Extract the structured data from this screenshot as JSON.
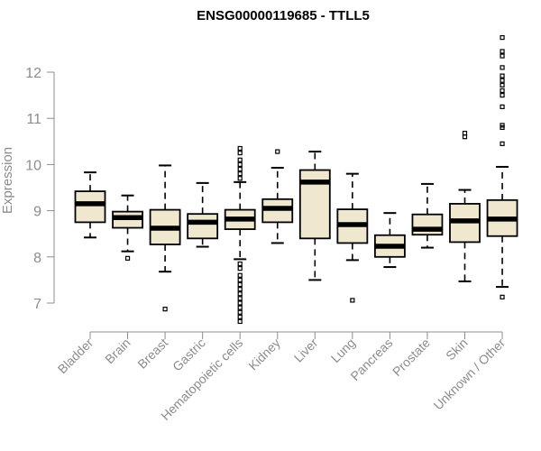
{
  "chart_data": {
    "type": "boxplot",
    "title": "ENSG00000119685 - TTLL5",
    "xlabel": "",
    "ylabel": "Expression",
    "ylim": [
      6.5,
      12.8
    ],
    "yticks": [
      7,
      8,
      9,
      10,
      11,
      12
    ],
    "colors": {
      "box_fill": "#efe8cf",
      "stroke": "#000000",
      "axis": "#8c8c8c"
    },
    "categories": [
      "Bladder",
      "Brain",
      "Breast",
      "Gastric",
      "Hematopoietic cells",
      "Kidney",
      "Liver",
      "Lung",
      "Pancreas",
      "Prostate",
      "Skin",
      "Unknown / Other"
    ],
    "boxes": [
      {
        "category": "Bladder",
        "q1": 8.75,
        "median": 9.15,
        "q3": 9.42,
        "whisker_low": 8.42,
        "whisker_high": 9.83,
        "outliers": []
      },
      {
        "category": "Brain",
        "q1": 8.63,
        "median": 8.85,
        "q3": 8.98,
        "whisker_low": 8.12,
        "whisker_high": 9.33,
        "outliers": [
          7.97
        ]
      },
      {
        "category": "Breast",
        "q1": 8.27,
        "median": 8.62,
        "q3": 9.02,
        "whisker_low": 7.68,
        "whisker_high": 9.98,
        "outliers": [
          6.87
        ]
      },
      {
        "category": "Gastric",
        "q1": 8.4,
        "median": 8.75,
        "q3": 8.93,
        "whisker_low": 8.22,
        "whisker_high": 9.6,
        "outliers": []
      },
      {
        "category": "Hematopoietic cells",
        "q1": 8.6,
        "median": 8.82,
        "q3": 9.02,
        "whisker_low": 7.95,
        "whisker_high": 9.62,
        "outliers": [
          9.7,
          9.8,
          9.9,
          10.0,
          10.1,
          10.25,
          10.35,
          7.85,
          7.75,
          7.6,
          7.5,
          7.4,
          7.3,
          7.2,
          7.1,
          7.0,
          6.9,
          6.8,
          6.7,
          6.6
        ]
      },
      {
        "category": "Kidney",
        "q1": 8.75,
        "median": 9.05,
        "q3": 9.25,
        "whisker_low": 8.3,
        "whisker_high": 9.93,
        "outliers": [
          10.28
        ]
      },
      {
        "category": "Liver",
        "q1": 8.4,
        "median": 9.62,
        "q3": 9.88,
        "whisker_low": 7.5,
        "whisker_high": 10.28,
        "outliers": []
      },
      {
        "category": "Lung",
        "q1": 8.3,
        "median": 8.7,
        "q3": 9.03,
        "whisker_low": 7.93,
        "whisker_high": 9.8,
        "outliers": [
          7.06
        ]
      },
      {
        "category": "Pancreas",
        "q1": 8.0,
        "median": 8.23,
        "q3": 8.47,
        "whisker_low": 7.78,
        "whisker_high": 8.95,
        "outliers": []
      },
      {
        "category": "Prostate",
        "q1": 8.48,
        "median": 8.6,
        "q3": 8.92,
        "whisker_low": 8.2,
        "whisker_high": 9.58,
        "outliers": []
      },
      {
        "category": "Skin",
        "q1": 8.32,
        "median": 8.78,
        "q3": 9.15,
        "whisker_low": 7.47,
        "whisker_high": 9.45,
        "outliers": [
          10.6,
          10.68
        ]
      },
      {
        "category": "Unknown / Other",
        "q1": 8.45,
        "median": 8.82,
        "q3": 9.23,
        "whisker_low": 7.35,
        "whisker_high": 9.95,
        "outliers": [
          7.13,
          10.45,
          10.8,
          10.85,
          11.25,
          11.5,
          11.6,
          11.72,
          11.82,
          11.92,
          12.1,
          12.35,
          12.45,
          12.75
        ]
      }
    ]
  }
}
